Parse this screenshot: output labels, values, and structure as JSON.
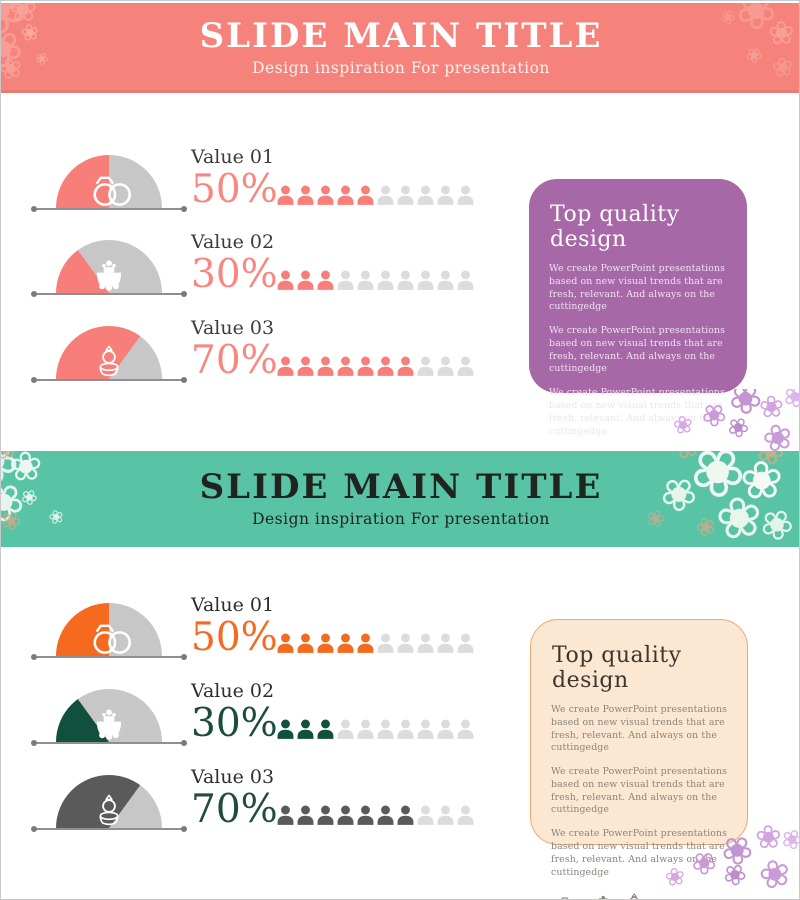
{
  "decor": {
    "flower_glyph": "❀"
  },
  "slides": [
    {
      "header": {
        "title": "SLIDE MAIN TITLE",
        "subtitle": "Design inspiration For presentation",
        "band_color": "#f5837b",
        "title_color": "#ffffff",
        "subtitle_color": "#fdf1f0"
      },
      "rows": [
        {
          "label": "Value 01",
          "percent": 50,
          "percent_label": "50%",
          "icon": "wedding-rings",
          "accent": "#f87e79",
          "track": "#c7c7c7",
          "people_track": "#dcdcdc",
          "value_color": "#f8877f",
          "label_color": "#3b3b3b",
          "people_total": 10,
          "people_filled": 5
        },
        {
          "label": "Value 02",
          "percent": 30,
          "percent_label": "30%",
          "icon": "wedding-table",
          "accent": "#f87e79",
          "track": "#c7c7c7",
          "people_track": "#dcdcdc",
          "value_color": "#f8877f",
          "label_color": "#3b3b3b",
          "people_total": 10,
          "people_filled": 3
        },
        {
          "label": "Value 03",
          "percent": 70,
          "percent_label": "70%",
          "icon": "ring-box",
          "accent": "#f87e79",
          "track": "#c7c7c7",
          "people_track": "#dcdcdc",
          "value_color": "#f8877f",
          "label_color": "#3b3b3b",
          "people_total": 10,
          "people_filled": 7
        }
      ],
      "box": {
        "title": "Top quality design",
        "bg": "#a668a7",
        "border_color": "#a668a7",
        "title_color": "#ffffff",
        "text_color": "#f0e2f1",
        "icon_color": "#ffffff",
        "paragraphs": [
          "We create PowerPoint presentations based on new visual trends that are fresh, relevant. And always on the cuttingedge",
          "We create PowerPoint presentations based on new visual trends that are fresh, relevant. And always on the cuttingedge",
          "We create PowerPoint presentations based on new visual trends that are fresh, relevant. And always on the cuttingedge"
        ],
        "icons": [
          "wedding-rings",
          "wedding-table",
          "ring-box"
        ]
      }
    },
    {
      "header": {
        "title": "SLIDE MAIN TITLE",
        "subtitle": "Design inspiration For presentation",
        "band_color": "#59c3a6",
        "title_color": "#20241f",
        "subtitle_color": "#20241f"
      },
      "rows": [
        {
          "label": "Value 01",
          "percent": 50,
          "percent_label": "50%",
          "icon": "wedding-rings",
          "accent": "#f56a1f",
          "track": "#c7c7c7",
          "people_track": "#dcdcdc",
          "value_color": "#f56a1f",
          "label_color": "#2c2f2b",
          "people_total": 10,
          "people_filled": 5
        },
        {
          "label": "Value 02",
          "percent": 30,
          "percent_label": "30%",
          "icon": "wedding-table",
          "accent": "#11503e",
          "track": "#c7c7c7",
          "people_track": "#dcdcdc",
          "value_color": "#1c4b3f",
          "label_color": "#2c2f2b",
          "people_total": 10,
          "people_filled": 3
        },
        {
          "label": "Value 03",
          "percent": 70,
          "percent_label": "70%",
          "icon": "ring-box",
          "accent": "#5a5a5a",
          "track": "#c7c7c7",
          "people_track": "#dcdcdc",
          "value_color": "#234b41",
          "label_color": "#2c2f2b",
          "people_total": 10,
          "people_filled": 7
        }
      ],
      "box": {
        "title": "Top quality design",
        "bg": "#fbe7d2",
        "border_color": "#f0a874",
        "title_color": "#3e352c",
        "text_color": "#8a857d",
        "icon_color": "#8a857d",
        "paragraphs": [
          "We create PowerPoint presentations based on new visual trends that are fresh, relevant. And always on the cuttingedge",
          "We create PowerPoint presentations based on new visual trends that are fresh, relevant. And always on the cuttingedge",
          "We create PowerPoint presentations based on new visual trends that are fresh, relevant. And always on the cuttingedge"
        ],
        "icons": [
          "wedding-rings",
          "wedding-table",
          "ring-box"
        ]
      }
    }
  ]
}
